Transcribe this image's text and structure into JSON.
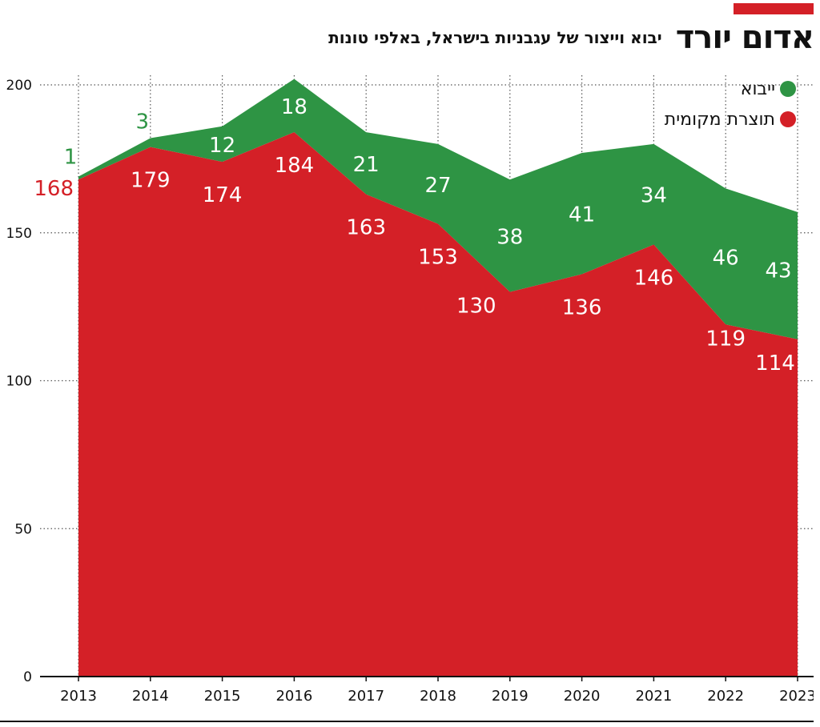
{
  "title": "אדום יורד",
  "subtitle": "יבוא וייצור של עגבניות בישראל, באלפי טונות",
  "colors": {
    "import": "#2e9444",
    "local": "#d42027",
    "accent": "#d42027"
  },
  "chart_data": {
    "type": "area",
    "stacked": true,
    "x": [
      "2013",
      "2014",
      "2015",
      "2016",
      "2017",
      "2018",
      "2019",
      "2020",
      "2021",
      "2022",
      "2023"
    ],
    "ylim": [
      0,
      200
    ],
    "yticks": [
      0,
      50,
      100,
      150,
      200
    ],
    "grid": "dotted-horizontal",
    "legend_position": "top-right",
    "series": [
      {
        "name": "תוצרת מקומית",
        "key": "local",
        "values": [
          168,
          179,
          174,
          184,
          163,
          153,
          130,
          136,
          146,
          119,
          114
        ]
      },
      {
        "name": "ייבוא",
        "key": "import",
        "values": [
          1,
          3,
          12,
          18,
          21,
          27,
          38,
          41,
          34,
          46,
          43
        ]
      }
    ]
  }
}
